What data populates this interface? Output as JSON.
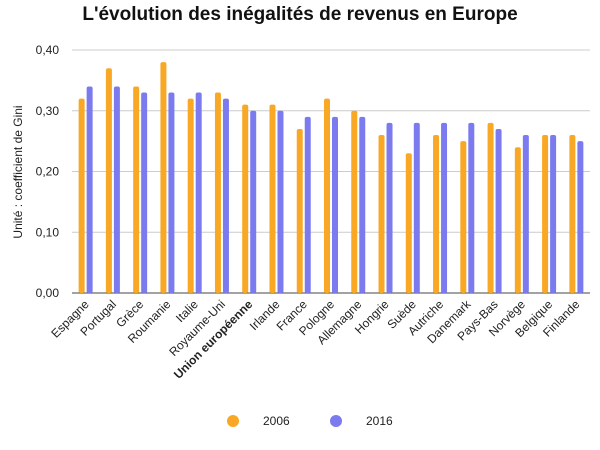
{
  "chart_data": {
    "type": "bar",
    "title": "L'évolution des inégalités de revenus en Europe",
    "ylabel": "Unité : coefficient de Gini",
    "xlabel": "",
    "ylim": [
      0,
      0.4
    ],
    "yticks": [
      "0,00",
      "0,10",
      "0,20",
      "0,30",
      "0,40"
    ],
    "ytick_values": [
      0,
      0.1,
      0.2,
      0.3,
      0.4
    ],
    "grid": true,
    "legend_position": "bottom",
    "categories": [
      "Espagne",
      "Portugal",
      "Grèce",
      "Roumanie",
      "Italie",
      "Royaume-Uni",
      "Union européenne",
      "Irlande",
      "France",
      "Pologne",
      "Allemagne",
      "Hongrie",
      "Suède",
      "Autriche",
      "Danemark",
      "Pays-Bas",
      "Norvège",
      "Belgique",
      "Finlande"
    ],
    "bold_category": "Union européenne",
    "series": [
      {
        "name": "2006",
        "color": "#f9a825",
        "values": [
          0.32,
          0.37,
          0.34,
          0.38,
          0.32,
          0.33,
          0.31,
          0.31,
          0.27,
          0.32,
          0.3,
          0.26,
          0.23,
          0.26,
          0.25,
          0.28,
          0.24,
          0.26,
          0.26
        ]
      },
      {
        "name": "2016",
        "color": "#7b7bef",
        "values": [
          0.34,
          0.34,
          0.33,
          0.33,
          0.33,
          0.32,
          0.3,
          0.3,
          0.29,
          0.29,
          0.29,
          0.28,
          0.28,
          0.28,
          0.28,
          0.27,
          0.26,
          0.26,
          0.25
        ]
      }
    ]
  }
}
